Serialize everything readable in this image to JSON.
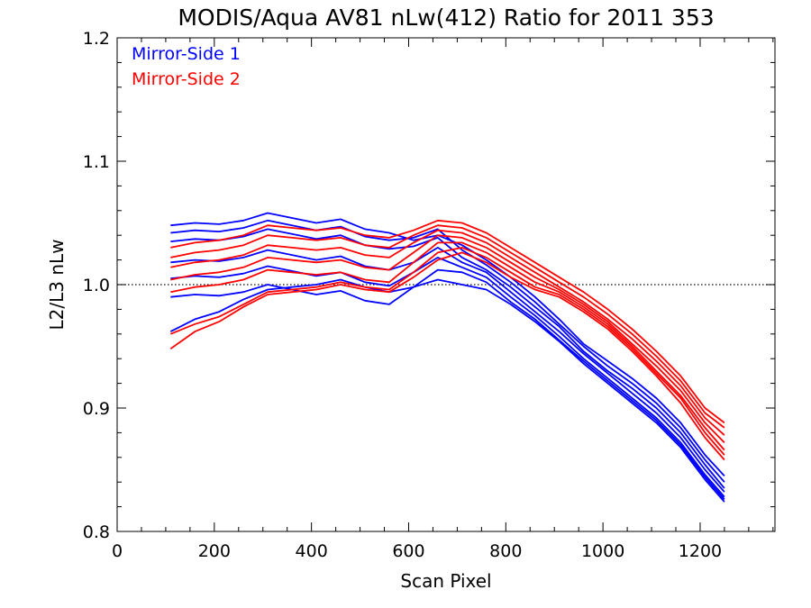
{
  "chart_data": {
    "type": "line",
    "title": "MODIS/Aqua AV81 nLw(412) Ratio for 2011 353",
    "xlabel": "Scan Pixel",
    "ylabel": "L2/L3 nLw",
    "xlim": [
      0,
      1354
    ],
    "ylim": [
      0.8,
      1.2
    ],
    "xticks": [
      "0",
      "200",
      "400",
      "600",
      "800",
      "1000",
      "1200"
    ],
    "yticks": [
      "0.8",
      "0.9",
      "1.0",
      "1.1",
      "1.2"
    ],
    "reference_line": {
      "y": 1.0,
      "style": "dotted"
    },
    "legend_position": "top-left",
    "x": [
      110,
      160,
      210,
      260,
      310,
      360,
      410,
      460,
      510,
      560,
      610,
      660,
      710,
      760,
      810,
      860,
      910,
      960,
      1010,
      1060,
      1110,
      1160,
      1210,
      1250
    ],
    "series": [
      {
        "name": "Mirror-Side 1",
        "color": "#0000ff",
        "lines": [
          [
            1.048,
            1.05,
            1.049,
            1.052,
            1.058,
            1.054,
            1.05,
            1.053,
            1.045,
            1.042,
            1.036,
            1.04,
            1.032,
            1.02,
            1.006,
            0.99,
            0.972,
            0.952,
            0.938,
            0.924,
            0.908,
            0.888,
            0.862,
            0.845
          ],
          [
            1.042,
            1.044,
            1.043,
            1.046,
            1.052,
            1.048,
            1.044,
            1.047,
            1.039,
            1.036,
            1.038,
            1.045,
            1.028,
            1.016,
            1.002,
            0.986,
            0.968,
            0.95,
            0.934,
            0.92,
            0.904,
            0.884,
            0.858,
            0.84
          ],
          [
            1.035,
            1.037,
            1.036,
            1.039,
            1.045,
            1.041,
            1.037,
            1.04,
            1.032,
            1.029,
            1.031,
            1.038,
            1.022,
            1.012,
            0.998,
            0.982,
            0.966,
            0.946,
            0.93,
            0.916,
            0.9,
            0.88,
            0.854,
            0.835
          ],
          [
            1.018,
            1.02,
            1.019,
            1.022,
            1.028,
            1.024,
            1.02,
            1.023,
            1.015,
            1.012,
            1.018,
            1.03,
            1.018,
            1.01,
            0.994,
            0.978,
            0.962,
            0.944,
            0.928,
            0.912,
            0.896,
            0.876,
            0.85,
            0.832
          ],
          [
            1.005,
            1.007,
            1.006,
            1.009,
            1.015,
            1.011,
            1.007,
            1.01,
            1.002,
            0.999,
            1.01,
            1.022,
            1.014,
            1.006,
            0.99,
            0.975,
            0.958,
            0.94,
            0.924,
            0.908,
            0.892,
            0.872,
            0.846,
            0.828
          ],
          [
            0.99,
            0.992,
            0.991,
            0.994,
            1.0,
            0.996,
            0.992,
            0.995,
            0.987,
            0.984,
            0.998,
            1.012,
            1.01,
            1.002,
            0.986,
            0.972,
            0.955,
            0.938,
            0.922,
            0.906,
            0.89,
            0.87,
            0.844,
            0.826
          ],
          [
            0.962,
            0.972,
            0.978,
            0.988,
            0.996,
            0.998,
            1.0,
            1.004,
            0.998,
            0.994,
            0.998,
            1.004,
            1.0,
            0.996,
            0.984,
            0.97,
            0.954,
            0.936,
            0.92,
            0.904,
            0.888,
            0.868,
            0.842,
            0.824
          ]
        ]
      },
      {
        "name": "Mirror-Side 2",
        "color": "#ff0000",
        "lines": [
          [
            1.03,
            1.034,
            1.036,
            1.04,
            1.048,
            1.046,
            1.044,
            1.046,
            1.04,
            1.038,
            1.044,
            1.052,
            1.05,
            1.042,
            1.03,
            1.018,
            1.006,
            0.994,
            0.98,
            0.964,
            0.946,
            0.926,
            0.9,
            0.888
          ],
          [
            1.022,
            1.026,
            1.028,
            1.032,
            1.04,
            1.038,
            1.036,
            1.038,
            1.032,
            1.03,
            1.04,
            1.048,
            1.046,
            1.038,
            1.026,
            1.014,
            1.002,
            0.99,
            0.976,
            0.96,
            0.942,
            0.922,
            0.896,
            0.884
          ],
          [
            1.014,
            1.018,
            1.02,
            1.024,
            1.032,
            1.03,
            1.028,
            1.03,
            1.024,
            1.022,
            1.034,
            1.044,
            1.042,
            1.034,
            1.022,
            1.01,
            0.998,
            0.986,
            0.972,
            0.956,
            0.938,
            0.918,
            0.892,
            0.878
          ],
          [
            1.004,
            1.008,
            1.01,
            1.014,
            1.022,
            1.02,
            1.018,
            1.02,
            1.014,
            1.012,
            1.026,
            1.04,
            1.038,
            1.03,
            1.018,
            1.006,
            0.996,
            0.984,
            0.97,
            0.952,
            0.934,
            0.914,
            0.888,
            0.872
          ],
          [
            0.994,
            0.998,
            1.0,
            1.004,
            1.012,
            1.01,
            1.008,
            1.01,
            1.004,
            1.002,
            1.018,
            1.034,
            1.034,
            1.026,
            1.014,
            1.002,
            0.994,
            0.982,
            0.968,
            0.95,
            0.93,
            0.91,
            0.884,
            0.866
          ],
          [
            0.96,
            0.968,
            0.974,
            0.984,
            0.994,
            0.996,
            0.998,
            1.002,
            0.998,
            0.996,
            1.01,
            1.026,
            1.03,
            1.022,
            1.01,
            0.998,
            0.992,
            0.98,
            0.966,
            0.948,
            0.928,
            0.908,
            0.88,
            0.862
          ],
          [
            0.948,
            0.962,
            0.97,
            0.982,
            0.992,
            0.994,
            0.996,
            1.0,
            0.996,
            0.994,
            1.006,
            1.02,
            1.026,
            1.018,
            1.006,
            0.996,
            0.99,
            0.978,
            0.964,
            0.946,
            0.926,
            0.904,
            0.876,
            0.858
          ]
        ]
      }
    ]
  }
}
